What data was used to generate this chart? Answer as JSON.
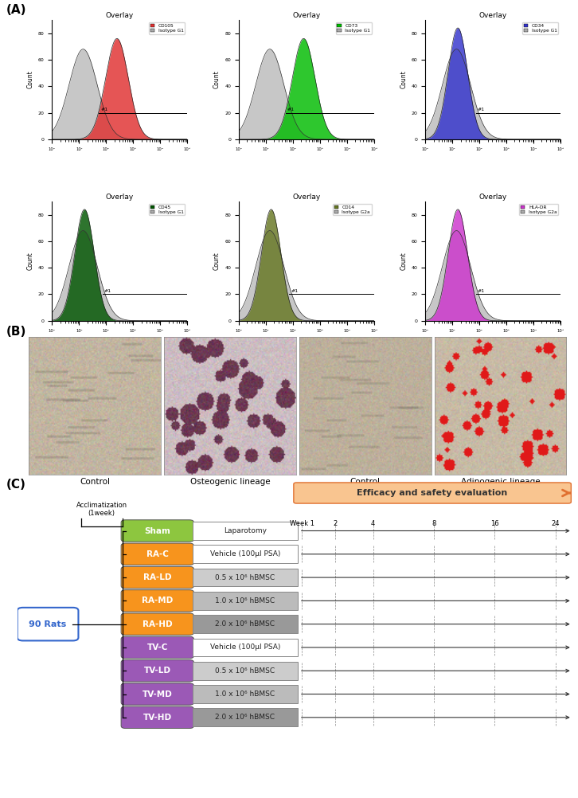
{
  "panel_a": {
    "histograms": [
      {
        "label": "CD105",
        "color": "#e03030",
        "isotype_label": "Isotype G1",
        "isotype_color": "#aaaaaa",
        "positive": true
      },
      {
        "label": "CD73",
        "color": "#00bb00",
        "isotype_label": "Isotype G1",
        "isotype_color": "#aaaaaa",
        "positive": true
      },
      {
        "label": "CD34",
        "color": "#3333cc",
        "isotype_label": "Isotype G1",
        "isotype_color": "#aaaaaa",
        "positive": false
      },
      {
        "label": "CD45",
        "color": "#005500",
        "isotype_label": "Isotype G1",
        "isotype_color": "#aaaaaa",
        "positive": false
      },
      {
        "label": "CD14",
        "color": "#667722",
        "isotype_label": "Isotype G2a",
        "isotype_color": "#aaaaaa",
        "positive": false
      },
      {
        "label": "HLA-DR",
        "color": "#cc33cc",
        "isotype_label": "Isotype G2a",
        "isotype_color": "#aaaaaa",
        "positive": false
      }
    ]
  },
  "panel_b": {
    "labels": [
      "Control",
      "Osteogenic lineage",
      "Control",
      "Adipogenic lineage"
    ]
  },
  "panel_c": {
    "groups": [
      {
        "name": "Sham",
        "color": "#8dc63f",
        "text_color": "#ffffff",
        "treatment": "Laparotomy",
        "treatment_bg": "#ffffff"
      },
      {
        "name": "RA-C",
        "color": "#f7941d",
        "text_color": "#ffffff",
        "treatment": "Vehicle (100μl PSA)",
        "treatment_bg": "#ffffff"
      },
      {
        "name": "RA-LD",
        "color": "#f7941d",
        "text_color": "#ffffff",
        "treatment": "0.5 x 10⁶ hBMSC",
        "treatment_bg": "#cccccc"
      },
      {
        "name": "RA-MD",
        "color": "#f7941d",
        "text_color": "#ffffff",
        "treatment": "1.0 x 10⁶ hBMSC",
        "treatment_bg": "#bbbbbb"
      },
      {
        "name": "RA-HD",
        "color": "#f7941d",
        "text_color": "#ffffff",
        "treatment": "2.0 x 10⁶ hBMSC",
        "treatment_bg": "#999999"
      },
      {
        "name": "TV-C",
        "color": "#9b59b6",
        "text_color": "#ffffff",
        "treatment": "Vehicle (100μl PSA)",
        "treatment_bg": "#ffffff"
      },
      {
        "name": "TV-LD",
        "color": "#9b59b6",
        "text_color": "#ffffff",
        "treatment": "0.5 x 10⁶ hBMSC",
        "treatment_bg": "#cccccc"
      },
      {
        "name": "TV-MD",
        "color": "#9b59b6",
        "text_color": "#ffffff",
        "treatment": "1.0 x 10⁶ hBMSC",
        "treatment_bg": "#bbbbbb"
      },
      {
        "name": "TV-HD",
        "color": "#9b59b6",
        "text_color": "#ffffff",
        "treatment": "2.0 x 10⁶ hBMSC",
        "treatment_bg": "#999999"
      }
    ],
    "week_labels": [
      "Week 1",
      "2",
      "4",
      "8",
      "16",
      "24"
    ],
    "arrow_color": "#f4a460",
    "arrow_label": "Efficacy and safety evaluation"
  }
}
